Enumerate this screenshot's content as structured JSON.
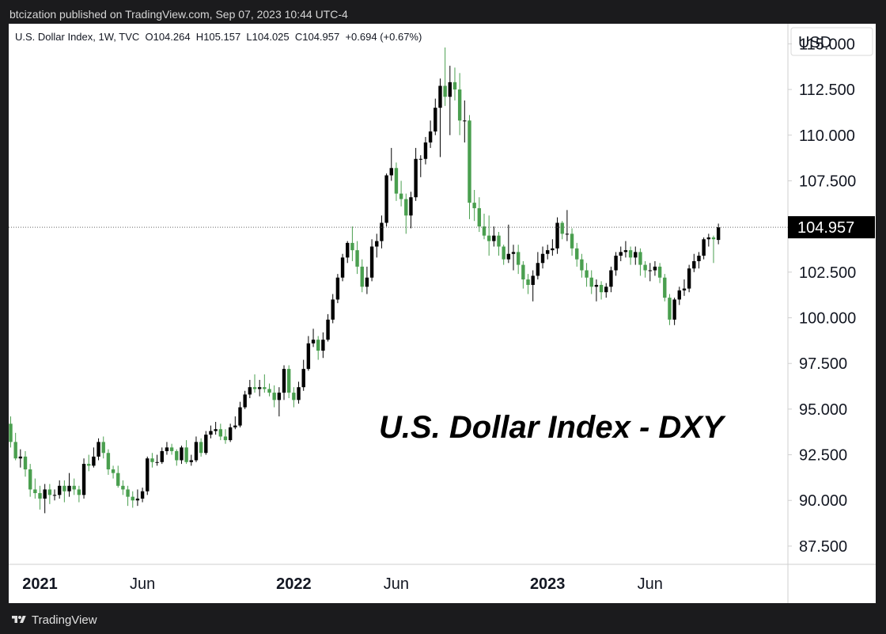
{
  "header": {
    "published": "btcization published on TradingView.com, Sep 07, 2023 10:44 UTC-4"
  },
  "footer": {
    "brand": "TradingView"
  },
  "chart_data": {
    "type": "candlestick",
    "symbol_line": "U.S. Dollar Index, 1W, TVC  O104.264  H105.157  L104.025  C104.957  +0.694 (+0.67%)",
    "overlay_title": "U.S. Dollar Index - DXY",
    "currency": "USD",
    "last_price": 104.957,
    "last_price_label": "104.957",
    "ylim": [
      86.5,
      116.1
    ],
    "y_ticks": [
      "115.000",
      "112.500",
      "110.000",
      "107.500",
      "102.500",
      "100.000",
      "97.500",
      "95.000",
      "92.500",
      "90.000",
      "87.500"
    ],
    "x_ticks": [
      {
        "label": "2021",
        "index": 6,
        "bold": true
      },
      {
        "label": "Jun",
        "index": 27,
        "bold": false
      },
      {
        "label": "2022",
        "index": 58,
        "bold": true
      },
      {
        "label": "Jun",
        "index": 79,
        "bold": false
      },
      {
        "label": "2023",
        "index": 110,
        "bold": true
      },
      {
        "label": "Jun",
        "index": 131,
        "bold": false
      }
    ],
    "up_color": "#000000",
    "down_color": "#4a9f4f",
    "closes": [
      93.2,
      92.3,
      92.4,
      91.7,
      90.6,
      90.4,
      90.1,
      90.6,
      90.3,
      90.3,
      90.8,
      90.5,
      90.8,
      90.6,
      90.3,
      92.0,
      91.9,
      92.4,
      93.2,
      92.6,
      91.7,
      91.5,
      90.8,
      90.6,
      90.2,
      90.0,
      90.1,
      90.5,
      92.3,
      92.1,
      92.1,
      92.7,
      92.9,
      92.7,
      92.2,
      92.9,
      92.1,
      92.2,
      93.2,
      92.6,
      93.6,
      93.8,
      93.9,
      93.5,
      93.3,
      94.0,
      94.1,
      95.1,
      95.8,
      96.2,
      96.1,
      96.2,
      96.1,
      95.9,
      95.5,
      95.9,
      97.2,
      95.9,
      95.5,
      96.2,
      97.2,
      98.6,
      98.8,
      98.2,
      98.8,
      99.9,
      101.0,
      102.2,
      103.3,
      104.1,
      103.7,
      102.8,
      101.7,
      102.2,
      103.9,
      104.2,
      105.2,
      107.8,
      108.2,
      106.8,
      106.5,
      105.6,
      106.6,
      108.7,
      108.7,
      109.6,
      110.2,
      111.5,
      112.7,
      112.1,
      112.9,
      112.5,
      110.8,
      110.8,
      106.3,
      106.0,
      105.0,
      104.5,
      104.2,
      104.5,
      103.9,
      103.2,
      103.5,
      103.6,
      102.9,
      102.1,
      101.8,
      102.3,
      103.0,
      103.5,
      103.7,
      103.8,
      105.2,
      104.6,
      104.6,
      103.8,
      103.2,
      102.6,
      102.2,
      101.7,
      101.8,
      101.4,
      101.7,
      102.6,
      103.4,
      103.6,
      103.7,
      103.3,
      103.6,
      102.9,
      102.6,
      102.6,
      102.8,
      102.2,
      101.1,
      99.9,
      101.0,
      101.5,
      101.6,
      102.7,
      103.1,
      103.4,
      104.3,
      104.4,
      104.3,
      104.96
    ],
    "candles": [
      {
        "o": 94.2,
        "h": 94.6,
        "l": 92.9,
        "c": 93.2
      },
      {
        "o": 93.2,
        "h": 93.7,
        "l": 92.2,
        "c": 92.3
      },
      {
        "o": 92.3,
        "h": 92.8,
        "l": 91.8,
        "c": 92.4
      },
      {
        "o": 92.4,
        "h": 92.7,
        "l": 91.3,
        "c": 91.7
      },
      {
        "o": 91.7,
        "h": 92.0,
        "l": 90.2,
        "c": 90.6
      },
      {
        "o": 90.6,
        "h": 91.2,
        "l": 90.1,
        "c": 90.4
      },
      {
        "o": 90.4,
        "h": 90.8,
        "l": 89.5,
        "c": 90.1
      },
      {
        "o": 90.1,
        "h": 90.9,
        "l": 89.3,
        "c": 90.6
      },
      {
        "o": 90.6,
        "h": 90.9,
        "l": 89.8,
        "c": 90.3
      },
      {
        "o": 90.3,
        "h": 90.6,
        "l": 90.0,
        "c": 90.3
      },
      {
        "o": 90.3,
        "h": 91.1,
        "l": 90.1,
        "c": 90.8
      },
      {
        "o": 90.8,
        "h": 91.1,
        "l": 89.9,
        "c": 90.5
      },
      {
        "o": 90.5,
        "h": 91.5,
        "l": 90.2,
        "c": 90.8
      },
      {
        "o": 90.8,
        "h": 91.2,
        "l": 90.3,
        "c": 90.6
      },
      {
        "o": 90.6,
        "h": 90.8,
        "l": 89.9,
        "c": 90.3
      },
      {
        "o": 90.3,
        "h": 92.3,
        "l": 90.1,
        "c": 92.0
      },
      {
        "o": 92.0,
        "h": 92.5,
        "l": 91.6,
        "c": 91.9
      },
      {
        "o": 91.9,
        "h": 92.9,
        "l": 91.8,
        "c": 92.4
      },
      {
        "o": 92.4,
        "h": 93.4,
        "l": 92.2,
        "c": 93.2
      },
      {
        "o": 93.2,
        "h": 93.5,
        "l": 92.3,
        "c": 92.6
      },
      {
        "o": 92.6,
        "h": 92.8,
        "l": 91.4,
        "c": 91.7
      },
      {
        "o": 91.7,
        "h": 91.9,
        "l": 91.2,
        "c": 91.5
      },
      {
        "o": 91.5,
        "h": 91.9,
        "l": 90.7,
        "c": 90.8
      },
      {
        "o": 90.8,
        "h": 91.1,
        "l": 90.3,
        "c": 90.6
      },
      {
        "o": 90.6,
        "h": 90.8,
        "l": 89.7,
        "c": 90.2
      },
      {
        "o": 90.2,
        "h": 90.5,
        "l": 89.6,
        "c": 90.0
      },
      {
        "o": 90.0,
        "h": 90.6,
        "l": 89.7,
        "c": 90.1
      },
      {
        "o": 90.1,
        "h": 90.7,
        "l": 89.9,
        "c": 90.5
      },
      {
        "o": 90.5,
        "h": 92.4,
        "l": 90.3,
        "c": 92.3
      },
      {
        "o": 92.3,
        "h": 92.6,
        "l": 91.8,
        "c": 92.1
      },
      {
        "o": 92.1,
        "h": 92.5,
        "l": 91.9,
        "c": 92.1
      },
      {
        "o": 92.1,
        "h": 92.9,
        "l": 92.0,
        "c": 92.7
      },
      {
        "o": 92.7,
        "h": 93.2,
        "l": 92.5,
        "c": 92.9
      },
      {
        "o": 92.9,
        "h": 93.1,
        "l": 92.5,
        "c": 92.7
      },
      {
        "o": 92.7,
        "h": 92.8,
        "l": 91.9,
        "c": 92.2
      },
      {
        "o": 92.2,
        "h": 93.0,
        "l": 92.0,
        "c": 92.9
      },
      {
        "o": 92.9,
        "h": 93.3,
        "l": 92.0,
        "c": 92.1
      },
      {
        "o": 92.1,
        "h": 92.5,
        "l": 91.9,
        "c": 92.2
      },
      {
        "o": 92.2,
        "h": 93.5,
        "l": 92.1,
        "c": 93.2
      },
      {
        "o": 93.2,
        "h": 93.4,
        "l": 92.4,
        "c": 92.6
      },
      {
        "o": 92.6,
        "h": 93.8,
        "l": 92.5,
        "c": 93.6
      },
      {
        "o": 93.6,
        "h": 94.1,
        "l": 93.4,
        "c": 93.8
      },
      {
        "o": 93.8,
        "h": 94.3,
        "l": 93.6,
        "c": 93.9
      },
      {
        "o": 93.9,
        "h": 94.2,
        "l": 93.3,
        "c": 93.5
      },
      {
        "o": 93.5,
        "h": 93.9,
        "l": 93.1,
        "c": 93.3
      },
      {
        "o": 93.3,
        "h": 94.2,
        "l": 93.2,
        "c": 94.0
      },
      {
        "o": 94.0,
        "h": 94.6,
        "l": 93.9,
        "c": 94.1
      },
      {
        "o": 94.1,
        "h": 95.4,
        "l": 94.0,
        "c": 95.1
      },
      {
        "o": 95.1,
        "h": 96.0,
        "l": 95.0,
        "c": 95.8
      },
      {
        "o": 95.8,
        "h": 96.6,
        "l": 95.6,
        "c": 96.2
      },
      {
        "o": 96.2,
        "h": 96.9,
        "l": 95.9,
        "c": 96.1
      },
      {
        "o": 96.1,
        "h": 96.6,
        "l": 95.7,
        "c": 96.2
      },
      {
        "o": 96.2,
        "h": 96.9,
        "l": 95.9,
        "c": 96.1
      },
      {
        "o": 96.1,
        "h": 96.4,
        "l": 95.7,
        "c": 95.9
      },
      {
        "o": 95.9,
        "h": 96.3,
        "l": 95.1,
        "c": 95.5
      },
      {
        "o": 95.5,
        "h": 96.2,
        "l": 94.6,
        "c": 95.9
      },
      {
        "o": 95.9,
        "h": 97.4,
        "l": 95.5,
        "c": 97.2
      },
      {
        "o": 97.2,
        "h": 97.4,
        "l": 95.6,
        "c": 95.9
      },
      {
        "o": 95.9,
        "h": 96.2,
        "l": 95.1,
        "c": 95.5
      },
      {
        "o": 95.5,
        "h": 96.5,
        "l": 95.3,
        "c": 96.2
      },
      {
        "o": 96.2,
        "h": 97.7,
        "l": 96.0,
        "c": 97.2
      },
      {
        "o": 97.2,
        "h": 99.0,
        "l": 97.1,
        "c": 98.6
      },
      {
        "o": 98.6,
        "h": 99.4,
        "l": 98.4,
        "c": 98.8
      },
      {
        "o": 98.8,
        "h": 99.0,
        "l": 97.7,
        "c": 98.2
      },
      {
        "o": 98.2,
        "h": 99.2,
        "l": 97.8,
        "c": 98.8
      },
      {
        "o": 98.8,
        "h": 100.2,
        "l": 98.7,
        "c": 99.9
      },
      {
        "o": 99.9,
        "h": 101.3,
        "l": 99.7,
        "c": 101.0
      },
      {
        "o": 101.0,
        "h": 102.4,
        "l": 100.8,
        "c": 102.2
      },
      {
        "o": 102.2,
        "h": 103.5,
        "l": 102.0,
        "c": 103.3
      },
      {
        "o": 103.3,
        "h": 104.2,
        "l": 103.0,
        "c": 104.1
      },
      {
        "o": 104.1,
        "h": 105.0,
        "l": 103.1,
        "c": 103.7
      },
      {
        "o": 103.7,
        "h": 104.2,
        "l": 102.4,
        "c": 102.8
      },
      {
        "o": 102.8,
        "h": 103.2,
        "l": 101.4,
        "c": 101.7
      },
      {
        "o": 101.7,
        "h": 102.8,
        "l": 101.3,
        "c": 102.2
      },
      {
        "o": 102.2,
        "h": 104.3,
        "l": 102.0,
        "c": 103.9
      },
      {
        "o": 103.9,
        "h": 104.6,
        "l": 103.3,
        "c": 104.2
      },
      {
        "o": 104.2,
        "h": 105.6,
        "l": 103.8,
        "c": 105.2
      },
      {
        "o": 105.2,
        "h": 107.9,
        "l": 105.0,
        "c": 107.8
      },
      {
        "o": 107.8,
        "h": 109.3,
        "l": 107.5,
        "c": 108.2
      },
      {
        "o": 108.2,
        "h": 108.5,
        "l": 106.4,
        "c": 106.8
      },
      {
        "o": 106.8,
        "h": 107.5,
        "l": 106.1,
        "c": 106.5
      },
      {
        "o": 106.5,
        "h": 106.8,
        "l": 104.6,
        "c": 105.6
      },
      {
        "o": 105.6,
        "h": 106.9,
        "l": 104.9,
        "c": 106.6
      },
      {
        "o": 106.6,
        "h": 109.3,
        "l": 106.4,
        "c": 108.7
      },
      {
        "o": 108.7,
        "h": 108.9,
        "l": 107.7,
        "c": 108.7
      },
      {
        "o": 108.7,
        "h": 109.9,
        "l": 108.4,
        "c": 109.6
      },
      {
        "o": 109.6,
        "h": 110.8,
        "l": 109.3,
        "c": 110.2
      },
      {
        "o": 110.2,
        "h": 112.0,
        "l": 110.0,
        "c": 111.5
      },
      {
        "o": 111.5,
        "h": 113.1,
        "l": 108.8,
        "c": 112.7
      },
      {
        "o": 112.7,
        "h": 114.8,
        "l": 111.6,
        "c": 112.1
      },
      {
        "o": 112.1,
        "h": 113.8,
        "l": 110.0,
        "c": 112.9
      },
      {
        "o": 112.9,
        "h": 113.7,
        "l": 111.9,
        "c": 112.5
      },
      {
        "o": 112.5,
        "h": 113.4,
        "l": 110.0,
        "c": 110.8
      },
      {
        "o": 110.8,
        "h": 111.9,
        "l": 109.6,
        "c": 110.8
      },
      {
        "o": 110.8,
        "h": 111.1,
        "l": 105.4,
        "c": 106.3
      },
      {
        "o": 106.3,
        "h": 107.0,
        "l": 105.3,
        "c": 106.0
      },
      {
        "o": 106.0,
        "h": 106.6,
        "l": 104.7,
        "c": 105.0
      },
      {
        "o": 105.0,
        "h": 105.7,
        "l": 104.3,
        "c": 104.5
      },
      {
        "o": 104.5,
        "h": 105.6,
        "l": 103.4,
        "c": 104.2
      },
      {
        "o": 104.2,
        "h": 105.0,
        "l": 103.9,
        "c": 104.5
      },
      {
        "o": 104.5,
        "h": 104.7,
        "l": 103.4,
        "c": 103.9
      },
      {
        "o": 103.9,
        "h": 104.0,
        "l": 102.9,
        "c": 103.2
      },
      {
        "o": 103.2,
        "h": 105.1,
        "l": 103.0,
        "c": 103.5
      },
      {
        "o": 103.5,
        "h": 104.0,
        "l": 102.6,
        "c": 103.6
      },
      {
        "o": 103.6,
        "h": 104.0,
        "l": 102.4,
        "c": 102.9
      },
      {
        "o": 102.9,
        "h": 103.1,
        "l": 101.6,
        "c": 102.1
      },
      {
        "o": 102.1,
        "h": 102.4,
        "l": 101.3,
        "c": 101.8
      },
      {
        "o": 101.8,
        "h": 102.6,
        "l": 100.9,
        "c": 102.3
      },
      {
        "o": 102.3,
        "h": 103.6,
        "l": 102.1,
        "c": 103.0
      },
      {
        "o": 103.0,
        "h": 103.9,
        "l": 102.7,
        "c": 103.5
      },
      {
        "o": 103.5,
        "h": 104.0,
        "l": 103.2,
        "c": 103.7
      },
      {
        "o": 103.7,
        "h": 104.3,
        "l": 103.4,
        "c": 103.8
      },
      {
        "o": 103.8,
        "h": 105.5,
        "l": 103.5,
        "c": 105.2
      },
      {
        "o": 105.2,
        "h": 105.3,
        "l": 104.3,
        "c": 104.6
      },
      {
        "o": 104.6,
        "h": 105.9,
        "l": 104.2,
        "c": 104.6
      },
      {
        "o": 104.6,
        "h": 104.9,
        "l": 103.4,
        "c": 103.8
      },
      {
        "o": 103.8,
        "h": 104.1,
        "l": 102.8,
        "c": 103.2
      },
      {
        "o": 103.2,
        "h": 103.5,
        "l": 102.2,
        "c": 102.6
      },
      {
        "o": 102.6,
        "h": 103.0,
        "l": 101.7,
        "c": 102.2
      },
      {
        "o": 102.2,
        "h": 102.6,
        "l": 101.3,
        "c": 101.7
      },
      {
        "o": 101.7,
        "h": 102.1,
        "l": 100.9,
        "c": 101.8
      },
      {
        "o": 101.8,
        "h": 102.0,
        "l": 101.0,
        "c": 101.4
      },
      {
        "o": 101.4,
        "h": 101.9,
        "l": 101.1,
        "c": 101.7
      },
      {
        "o": 101.7,
        "h": 102.8,
        "l": 101.4,
        "c": 102.6
      },
      {
        "o": 102.6,
        "h": 103.6,
        "l": 102.3,
        "c": 103.4
      },
      {
        "o": 103.4,
        "h": 103.9,
        "l": 103.1,
        "c": 103.6
      },
      {
        "o": 103.6,
        "h": 104.2,
        "l": 103.3,
        "c": 103.7
      },
      {
        "o": 103.7,
        "h": 103.9,
        "l": 102.9,
        "c": 103.3
      },
      {
        "o": 103.3,
        "h": 103.9,
        "l": 102.9,
        "c": 103.6
      },
      {
        "o": 103.6,
        "h": 103.8,
        "l": 102.3,
        "c": 102.9
      },
      {
        "o": 102.9,
        "h": 103.1,
        "l": 102.2,
        "c": 102.6
      },
      {
        "o": 102.6,
        "h": 103.0,
        "l": 102.0,
        "c": 102.6
      },
      {
        "o": 102.6,
        "h": 103.1,
        "l": 102.3,
        "c": 102.8
      },
      {
        "o": 102.8,
        "h": 103.0,
        "l": 101.9,
        "c": 102.2
      },
      {
        "o": 102.2,
        "h": 102.4,
        "l": 100.9,
        "c": 101.1
      },
      {
        "o": 101.1,
        "h": 101.3,
        "l": 99.6,
        "c": 99.9
      },
      {
        "o": 99.9,
        "h": 101.1,
        "l": 99.6,
        "c": 101.0
      },
      {
        "o": 101.0,
        "h": 101.7,
        "l": 100.7,
        "c": 101.5
      },
      {
        "o": 101.5,
        "h": 102.1,
        "l": 101.2,
        "c": 101.6
      },
      {
        "o": 101.6,
        "h": 102.9,
        "l": 101.4,
        "c": 102.7
      },
      {
        "o": 102.7,
        "h": 103.5,
        "l": 102.5,
        "c": 103.1
      },
      {
        "o": 103.1,
        "h": 103.6,
        "l": 102.7,
        "c": 103.4
      },
      {
        "o": 103.4,
        "h": 104.4,
        "l": 103.2,
        "c": 104.3
      },
      {
        "o": 104.3,
        "h": 104.6,
        "l": 103.9,
        "c": 104.4
      },
      {
        "o": 104.4,
        "h": 104.5,
        "l": 103.0,
        "c": 104.3
      },
      {
        "o": 104.264,
        "h": 105.157,
        "l": 104.025,
        "c": 104.957
      }
    ]
  }
}
